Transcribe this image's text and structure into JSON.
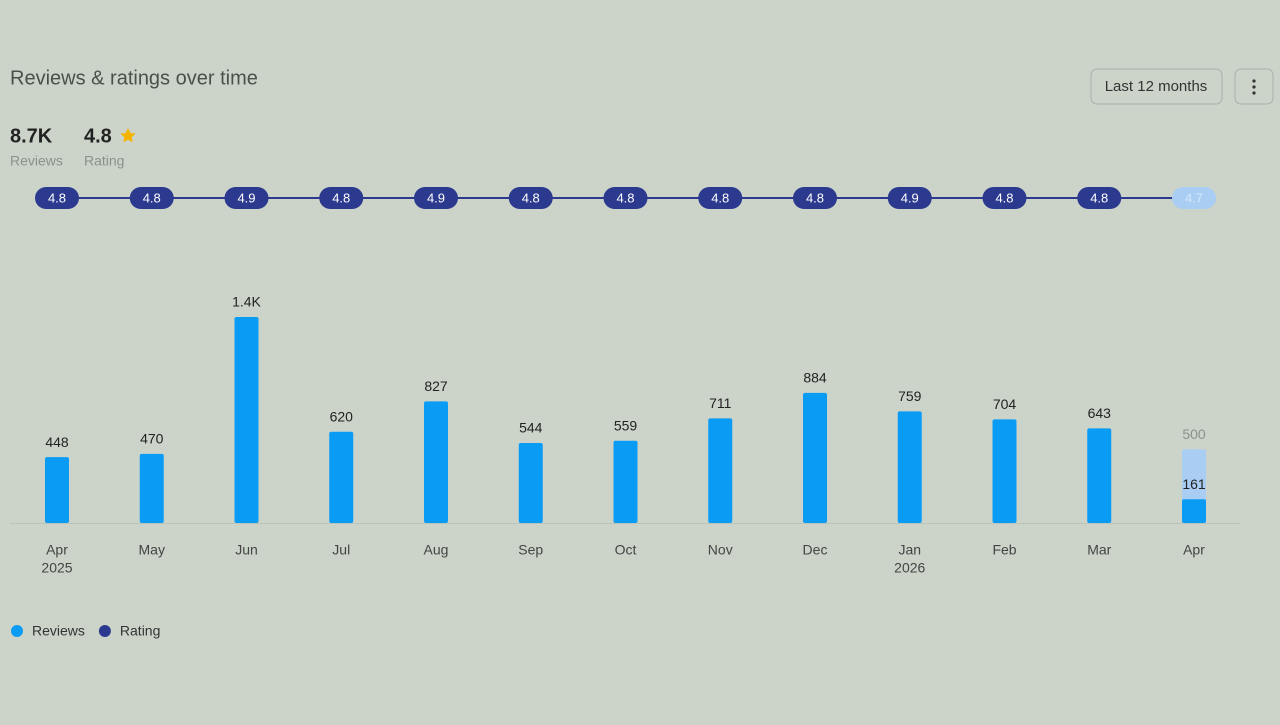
{
  "header": {
    "title": "Reviews & ratings over time",
    "range_button": "Last 12 months"
  },
  "summary": {
    "reviews": "8.7K",
    "reviews_label": "Reviews",
    "rating": "4.8",
    "rating_label": "Rating"
  },
  "chart_data": {
    "type": "bar",
    "categories": [
      "Apr",
      "May",
      "Jun",
      "Jul",
      "Aug",
      "Sep",
      "Oct",
      "Nov",
      "Dec",
      "Jan",
      "Feb",
      "Mar",
      "Apr"
    ],
    "category_years": [
      "2025",
      null,
      null,
      null,
      null,
      null,
      null,
      null,
      null,
      "2026",
      null,
      null,
      null
    ],
    "ylim": [
      0,
      1400
    ],
    "projected_color": "#a9cdf3",
    "projected_values": [
      null,
      null,
      null,
      null,
      null,
      null,
      null,
      null,
      null,
      null,
      null,
      null,
      500
    ],
    "series": [
      {
        "name": "Reviews",
        "color": "#0a9bf5",
        "values": [
          448,
          470,
          1400,
          620,
          827,
          544,
          559,
          711,
          884,
          759,
          704,
          643,
          161
        ],
        "value_labels": [
          "448",
          "470",
          "1.4K",
          "620",
          "827",
          "544",
          "559",
          "711",
          "884",
          "759",
          "704",
          "643",
          "161"
        ]
      },
      {
        "name": "Rating",
        "color": "#2b3a8f",
        "values": [
          4.8,
          4.8,
          4.9,
          4.8,
          4.9,
          4.8,
          4.8,
          4.8,
          4.8,
          4.9,
          4.8,
          4.8,
          4.7
        ]
      }
    ]
  }
}
